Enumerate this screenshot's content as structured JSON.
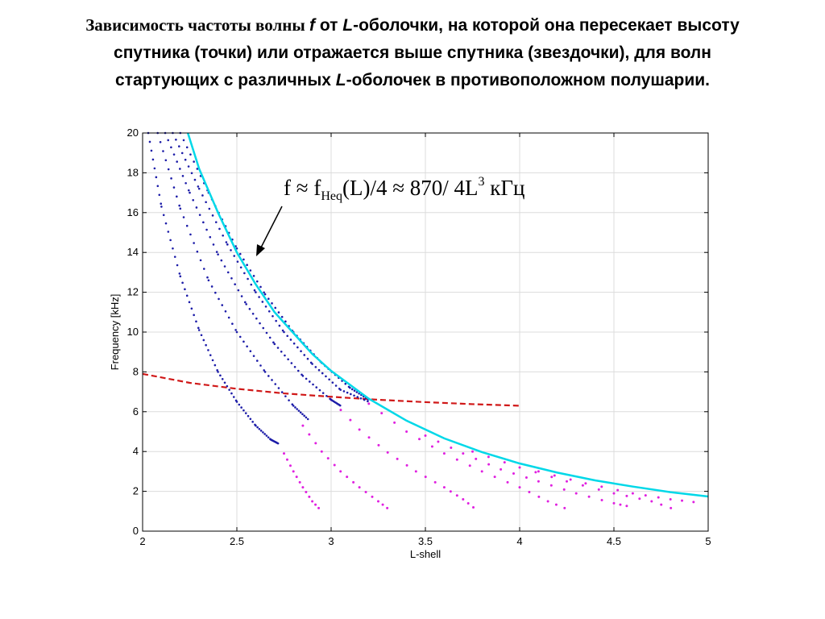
{
  "slide": {
    "title_parts": [
      {
        "text": "Зависимость частоты волны ",
        "style": "serif"
      },
      {
        "text": " f",
        "style": "italic"
      },
      {
        "text": " от ",
        "style": ""
      },
      {
        "text": "L",
        "style": "italic"
      },
      {
        "text": "-оболочки, на которой она пересекает высоту",
        "style": ""
      },
      {
        "text": "спутника (точки) или отражается выше спутника (звездочки), для волн",
        "style": "break"
      },
      {
        "text": "стартующих с различных ",
        "style": "break"
      },
      {
        "text": "L",
        "style": "italic"
      },
      {
        "text": "-оболочек в противоположном полушарии.",
        "style": ""
      }
    ]
  },
  "annotation": {
    "f": "f",
    "approx1": " ≈ ",
    "fheq": "f",
    "fheq_sub": "Heq",
    "mid": "(L)/4 ",
    "approx2": "≈",
    "value": " 870/ 4L",
    "exp": "3",
    "unit": "  кГц"
  },
  "chart_data": {
    "type": "scatter",
    "xlabel": "L-shell",
    "ylabel": "Frequency [kHz]",
    "xlim": [
      2,
      5
    ],
    "ylim": [
      0,
      20
    ],
    "xticks": [
      2,
      2.5,
      3,
      3.5,
      4,
      4.5,
      5
    ],
    "xtick_labels": [
      "2",
      "2.5",
      "3",
      "3.5",
      "4",
      "4.5",
      "5"
    ],
    "yticks": [
      0,
      2,
      4,
      6,
      8,
      10,
      12,
      14,
      16,
      18,
      20
    ],
    "grid": true,
    "colors": {
      "cyan_curve": "#00d8e8",
      "blue_dots": "#1c1ca8",
      "magenta_stars": "#e020e0",
      "red_dashed": "#d01818",
      "grid": "#dcdcdc"
    },
    "red_dashed": {
      "x": [
        2.0,
        2.25,
        2.5,
        2.75,
        3.0,
        3.25,
        3.5,
        3.75,
        4.0
      ],
      "y": [
        7.9,
        7.45,
        7.15,
        6.92,
        6.75,
        6.6,
        6.48,
        6.38,
        6.3
      ]
    },
    "cyan_curve": {
      "x": [
        2.24,
        2.3,
        2.4,
        2.5,
        2.6,
        2.7,
        2.8,
        2.9,
        3.0,
        3.2,
        3.4,
        3.6,
        3.8,
        4.0,
        4.2,
        4.4,
        4.6,
        4.8,
        5.0
      ],
      "y": [
        20.0,
        18.2,
        16.0,
        14.0,
        12.4,
        11.0,
        9.95,
        8.9,
        8.05,
        6.65,
        5.55,
        4.66,
        3.97,
        3.4,
        2.94,
        2.55,
        2.24,
        1.96,
        1.74
      ]
    },
    "blue_dots": [
      {
        "x": [
          2.03,
          2.1,
          2.2,
          2.3,
          2.4,
          2.5,
          2.6,
          2.68,
          2.72
        ],
        "y": [
          20.0,
          16.3,
          12.8,
          10.1,
          8.0,
          6.5,
          5.3,
          4.6,
          4.4
        ]
      },
      {
        "x": [
          2.08,
          2.2,
          2.35,
          2.5,
          2.65,
          2.8,
          2.88
        ],
        "y": [
          20.0,
          16.2,
          12.6,
          10.0,
          8.0,
          6.3,
          5.6
        ]
      },
      {
        "x": [
          2.12,
          2.25,
          2.4,
          2.55,
          2.7,
          2.85,
          3.0,
          3.05
        ],
        "y": [
          20.0,
          17.0,
          13.9,
          11.4,
          9.4,
          7.8,
          6.6,
          6.3
        ]
      },
      {
        "x": [
          2.16,
          2.3,
          2.45,
          2.6,
          2.75,
          2.9,
          3.05,
          3.2
        ],
        "y": [
          20.0,
          17.2,
          14.4,
          12.0,
          10.0,
          8.4,
          7.1,
          6.5
        ]
      },
      {
        "x": [
          2.2,
          2.35,
          2.5,
          2.65,
          2.8,
          2.95,
          3.1,
          3.2
        ],
        "y": [
          20.0,
          17.0,
          14.2,
          11.9,
          10.0,
          8.45,
          7.2,
          6.6
        ]
      }
    ],
    "magenta_stars": [
      {
        "x": [
          2.75,
          2.8,
          2.85,
          2.9,
          2.95
        ],
        "y": [
          3.9,
          3.0,
          2.2,
          1.5,
          1.0
        ]
      },
      {
        "x": [
          2.85,
          2.95,
          3.05,
          3.15,
          3.25,
          3.32
        ],
        "y": [
          5.3,
          4.0,
          3.0,
          2.2,
          1.5,
          1.0
        ]
      },
      {
        "x": [
          3.0,
          3.15,
          3.3,
          3.45,
          3.6,
          3.7,
          3.78
        ],
        "y": [
          6.6,
          5.1,
          3.95,
          3.0,
          2.2,
          1.6,
          1.0
        ]
      },
      {
        "x": [
          3.2,
          3.4,
          3.6,
          3.8,
          4.0,
          4.15,
          4.28
        ],
        "y": [
          6.4,
          5.0,
          3.9,
          3.0,
          2.2,
          1.5,
          1.0
        ]
      },
      {
        "x": [
          3.5,
          3.7,
          3.9,
          4.1,
          4.3,
          4.5,
          4.6
        ],
        "y": [
          4.8,
          3.9,
          3.1,
          2.5,
          1.9,
          1.4,
          1.2
        ]
      },
      {
        "x": [
          3.75,
          4.0,
          4.25,
          4.5,
          4.7,
          4.85
        ],
        "y": [
          4.0,
          3.2,
          2.5,
          1.9,
          1.5,
          1.0
        ]
      },
      {
        "x": [
          4.1,
          4.35,
          4.6,
          4.8,
          4.98
        ],
        "y": [
          3.0,
          2.4,
          1.9,
          1.6,
          1.4
        ]
      }
    ]
  }
}
